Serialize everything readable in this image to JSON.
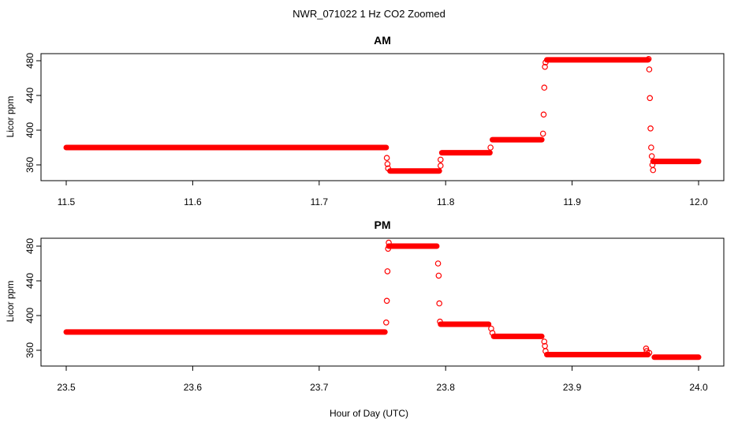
{
  "title": "NWR_071022  1 Hz CO2 Zoomed",
  "xlabel": "Hour of Day (UTC)",
  "chart_data": [
    {
      "type": "scatter",
      "title": "AM",
      "ylabel": "Licor ppm",
      "xlim": [
        11.5,
        12.0
      ],
      "ylim": [
        344,
        488
      ],
      "xticks": [
        11.5,
        11.6,
        11.7,
        11.8,
        11.9,
        12.0
      ],
      "xtick_labels": [
        "11.5",
        "11.6",
        "11.7",
        "11.8",
        "11.9",
        "12.0"
      ],
      "yticks": [
        360,
        400,
        440,
        480
      ],
      "ytick_labels": [
        "360",
        "400",
        "440",
        "480"
      ],
      "color": "#ff0000",
      "segments": [
        {
          "x": [
            11.5,
            11.753
          ],
          "y": 380
        },
        {
          "x": [
            11.756,
            11.795
          ],
          "y": 353
        },
        {
          "x": [
            11.797,
            11.835
          ],
          "y": 374
        },
        {
          "x": [
            11.837,
            11.876
          ],
          "y": 389
        },
        {
          "x": [
            11.88,
            11.96
          ],
          "y": 481
        },
        {
          "x": [
            11.964,
            12.0
          ],
          "y": 364
        }
      ],
      "transitions": [
        {
          "x": 11.7535,
          "y": 368
        },
        {
          "x": 11.754,
          "y": 361
        },
        {
          "x": 11.7545,
          "y": 356
        },
        {
          "x": 11.796,
          "y": 359
        },
        {
          "x": 11.796,
          "y": 366
        },
        {
          "x": 11.8355,
          "y": 380
        },
        {
          "x": 11.877,
          "y": 396
        },
        {
          "x": 11.8775,
          "y": 418
        },
        {
          "x": 11.878,
          "y": 449
        },
        {
          "x": 11.8785,
          "y": 473
        },
        {
          "x": 11.879,
          "y": 478
        },
        {
          "x": 11.9605,
          "y": 482
        },
        {
          "x": 11.961,
          "y": 470
        },
        {
          "x": 11.9615,
          "y": 437
        },
        {
          "x": 11.962,
          "y": 402
        },
        {
          "x": 11.9625,
          "y": 380
        },
        {
          "x": 11.963,
          "y": 370
        },
        {
          "x": 11.9635,
          "y": 360
        },
        {
          "x": 11.964,
          "y": 354
        }
      ]
    },
    {
      "type": "scatter",
      "title": "PM",
      "ylabel": "Licor ppm",
      "xlim": [
        23.5,
        24.0
      ],
      "ylim": [
        344,
        488
      ],
      "xticks": [
        23.5,
        23.6,
        23.7,
        23.8,
        23.9,
        24.0
      ],
      "xtick_labels": [
        "23.5",
        "23.6",
        "23.7",
        "23.8",
        "23.9",
        "24.0"
      ],
      "yticks": [
        360,
        400,
        440,
        480
      ],
      "ytick_labels": [
        "360",
        "400",
        "440",
        "480"
      ],
      "color": "#ff0000",
      "segments": [
        {
          "x": [
            23.5,
            23.752
          ],
          "y": 381
        },
        {
          "x": [
            23.755,
            23.793
          ],
          "y": 480
        },
        {
          "x": [
            23.796,
            23.834
          ],
          "y": 390
        },
        {
          "x": [
            23.838,
            23.876
          ],
          "y": 376
        },
        {
          "x": [
            23.88,
            23.96
          ],
          "y": 355
        },
        {
          "x": [
            23.965,
            24.0
          ],
          "y": 352
        }
      ],
      "transitions": [
        {
          "x": 23.753,
          "y": 392
        },
        {
          "x": 23.7535,
          "y": 417
        },
        {
          "x": 23.754,
          "y": 451
        },
        {
          "x": 23.7545,
          "y": 477
        },
        {
          "x": 23.755,
          "y": 484
        },
        {
          "x": 23.794,
          "y": 460
        },
        {
          "x": 23.7945,
          "y": 446
        },
        {
          "x": 23.795,
          "y": 414
        },
        {
          "x": 23.7955,
          "y": 393
        },
        {
          "x": 23.836,
          "y": 385
        },
        {
          "x": 23.837,
          "y": 380
        },
        {
          "x": 23.878,
          "y": 370
        },
        {
          "x": 23.8785,
          "y": 365
        },
        {
          "x": 23.879,
          "y": 359
        },
        {
          "x": 23.9585,
          "y": 362
        },
        {
          "x": 23.959,
          "y": 359
        },
        {
          "x": 23.961,
          "y": 357
        }
      ]
    }
  ]
}
